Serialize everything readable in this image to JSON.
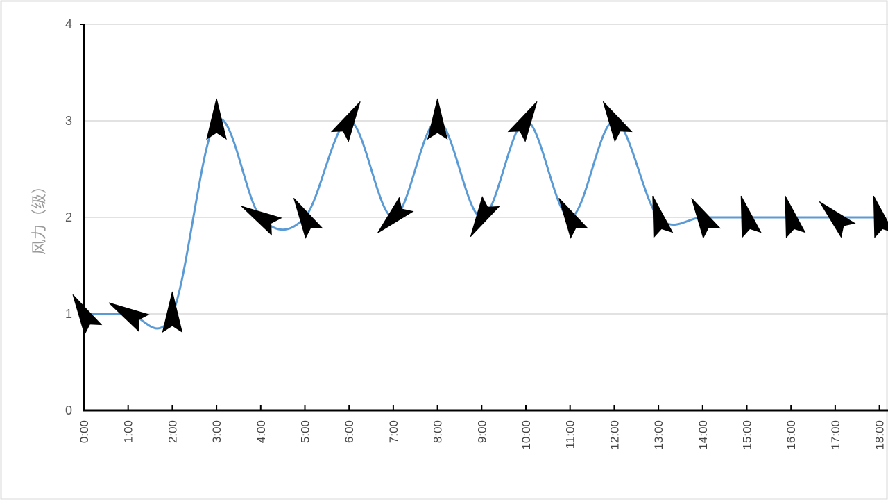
{
  "chart_data": {
    "type": "line",
    "title": "",
    "xlabel": "",
    "ylabel": "风力（级）",
    "ylim": [
      0,
      4
    ],
    "yticks": [
      "0",
      "1",
      "2",
      "3",
      "4"
    ],
    "grid": true,
    "categories": [
      "0:00",
      "1:00",
      "2:00",
      "3:00",
      "4:00",
      "5:00",
      "6:00",
      "7:00",
      "8:00",
      "9:00",
      "10:00",
      "11:00",
      "12:00",
      "13:00",
      "14:00",
      "15:00",
      "16:00",
      "17:00",
      "18:00"
    ],
    "series": [
      {
        "values": [
          1,
          1,
          1,
          3,
          2,
          2,
          3,
          2,
          3,
          2,
          3,
          2,
          3,
          2,
          2,
          2,
          2,
          2,
          2
        ],
        "color": "#5b9bd5"
      }
    ],
    "wind_direction_degrees": [
      330,
      300,
      0,
      0,
      300,
      330,
      30,
      225,
      0,
      210,
      30,
      330,
      330,
      345,
      330,
      345,
      345,
      315,
      345
    ],
    "marker": "black-wind-arrow"
  }
}
